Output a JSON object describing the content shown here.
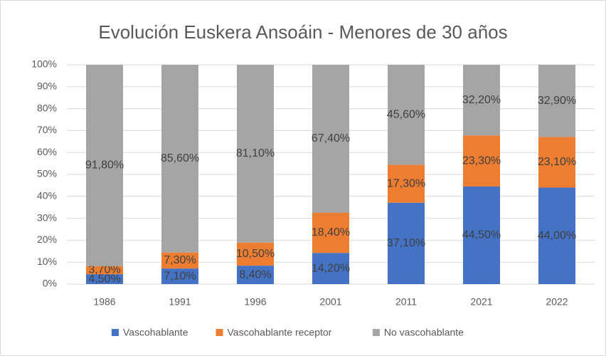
{
  "chart_data": {
    "type": "stacked_bar",
    "title": "Evolución Euskera Ansoáin - Menores de 30 años",
    "categories": [
      "1986",
      "1991",
      "1996",
      "2001",
      "2011",
      "2021",
      "2022"
    ],
    "series": [
      {
        "name": "Vascohablante",
        "color": "#4472c4",
        "values": [
          4.5,
          7.1,
          8.4,
          14.2,
          37.1,
          44.5,
          44.0
        ],
        "value_labels": [
          "4,50%",
          "7,10%",
          "8,40%",
          "14,20%",
          "37,10%",
          "44,50%",
          "44,00%"
        ]
      },
      {
        "name": "Vascohablante receptor",
        "color": "#ed7d31",
        "values": [
          3.7,
          7.3,
          10.5,
          18.4,
          17.3,
          23.3,
          23.1
        ],
        "value_labels": [
          "3,70%",
          "7,30%",
          "10,50%",
          "18,40%",
          "17,30%",
          "23,30%",
          "23,10%"
        ]
      },
      {
        "name": "No vascohablante",
        "color": "#a5a5a5",
        "values": [
          91.8,
          85.6,
          81.1,
          67.4,
          45.6,
          32.2,
          32.9
        ],
        "value_labels": [
          "91,80%",
          "85,60%",
          "81,10%",
          "67,40%",
          "45,60%",
          "32,20%",
          "32,90%"
        ]
      }
    ],
    "ylim": [
      0,
      100
    ],
    "yticks": [
      {
        "value": 0,
        "label": "0%"
      },
      {
        "value": 10,
        "label": "10%"
      },
      {
        "value": 20,
        "label": "20%"
      },
      {
        "value": 30,
        "label": "30%"
      },
      {
        "value": 40,
        "label": "40%"
      },
      {
        "value": 50,
        "label": "50%"
      },
      {
        "value": 60,
        "label": "60%"
      },
      {
        "value": 70,
        "label": "70%"
      },
      {
        "value": 80,
        "label": "80%"
      },
      {
        "value": 90,
        "label": "90%"
      },
      {
        "value": 100,
        "label": "100%"
      }
    ],
    "grid": true,
    "legend": "bottom"
  }
}
